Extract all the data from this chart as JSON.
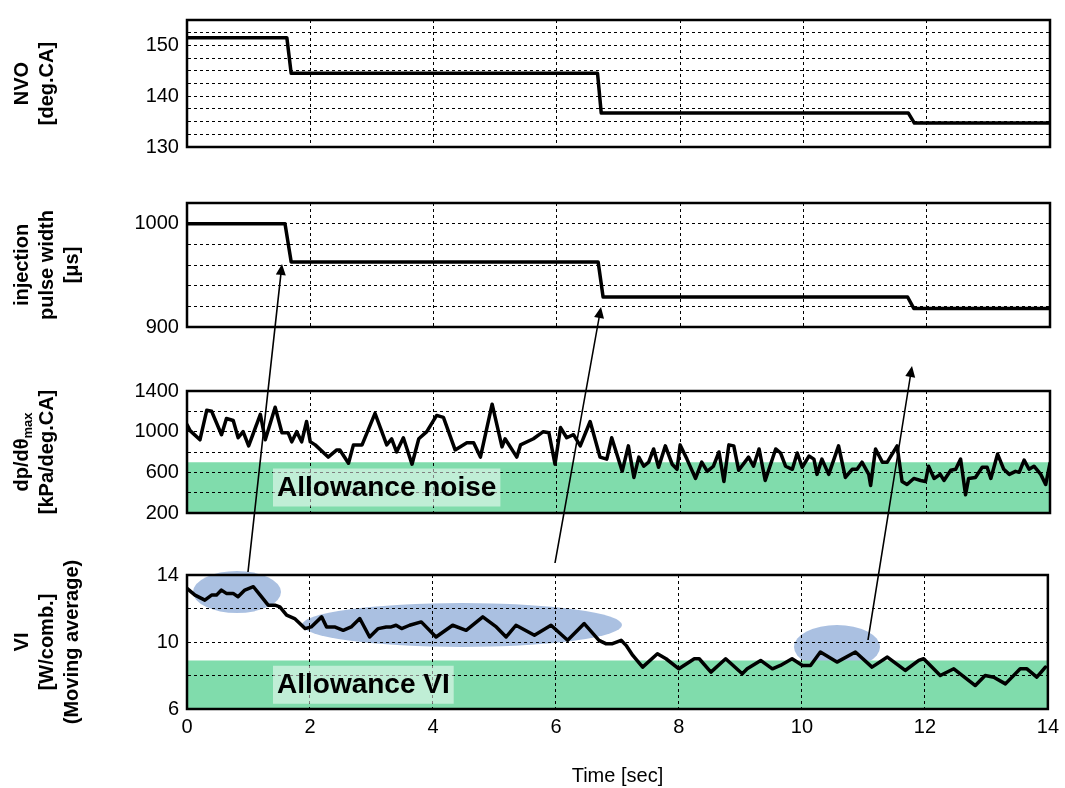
{
  "chart_data": [
    {
      "type": "line",
      "ylabel": "NVO\n[deg.CA]",
      "tick_labels": "y",
      "grid": true,
      "xlim": [
        0,
        14
      ],
      "xticks": [
        0,
        2,
        4,
        6,
        8,
        10,
        12,
        14
      ],
      "ylim": [
        130,
        155
      ],
      "yticks": [
        130,
        {
          "value": 132.5,
          "label": null
        },
        140,
        {
          "value": 142.5,
          "label": null
        },
        150,
        {
          "value": 152.5,
          "label": null
        },
        {
          "value": 135,
          "label": null
        },
        {
          "value": 137.5,
          "label": null
        },
        {
          "value": 145,
          "label": null
        },
        {
          "value": 147.5,
          "label": null
        }
      ],
      "series": [
        {
          "color": "#000000",
          "x": [
            0,
            1.62,
            1.69,
            6.66,
            6.72,
            11.7,
            11.8,
            14
          ],
          "values": [
            151.5,
            151.5,
            144.5,
            144.5,
            136.7,
            136.7,
            134.7,
            134.7
          ]
        }
      ]
    },
    {
      "type": "line",
      "ylabel": "injection\npulse width\n[μs]",
      "tick_labels": "y",
      "grid": true,
      "xlim": [
        0,
        14
      ],
      "xticks": [
        0,
        2,
        4,
        6,
        8,
        10,
        12,
        14
      ],
      "ylim": [
        900,
        1020
      ],
      "yticks": [
        900,
        {
          "value": 920,
          "label": null
        },
        {
          "value": 940,
          "label": null
        },
        {
          "value": 960,
          "label": null
        },
        {
          "value": 980,
          "label": null
        },
        1000,
        {
          "value": 1020,
          "label": null
        }
      ],
      "series": [
        {
          "color": "#000000",
          "x": [
            0,
            1.59,
            1.69,
            6.67,
            6.75,
            11.69,
            11.79,
            14
          ],
          "values": [
            1000,
            1000,
            963,
            963,
            929,
            929,
            918,
            918
          ]
        }
      ]
    },
    {
      "type": "line",
      "ylabel": "dp/dθ$_{max}$\n[kPa/deg.CA]",
      "tick_labels": "y",
      "grid": true,
      "xlim": [
        0,
        14
      ],
      "xticks": [
        0,
        2,
        4,
        6,
        8,
        10,
        12,
        14
      ],
      "ylim": [
        200,
        1400
      ],
      "yticks": [
        200,
        {
          "value": 400,
          "label": null
        },
        600,
        {
          "value": 800,
          "label": null
        },
        1000,
        {
          "value": 1200,
          "label": null
        },
        1400
      ],
      "bands": [
        {
          "axis": "y",
          "from": 200,
          "to": 700,
          "label": "Allowance noise",
          "color": "#80dcac"
        }
      ],
      "series": [
        {
          "color": "#000000",
          "x": [
            0,
            0.05,
            0.21,
            0.32,
            0.4,
            0.56,
            0.64,
            0.75,
            0.83,
            0.91,
            1.0,
            1.19,
            1.27,
            1.43,
            1.54,
            1.64,
            1.7,
            1.78,
            1.86,
            1.94,
            2.0,
            2.08,
            2.29,
            2.43,
            2.48,
            2.62,
            2.7,
            2.84,
            3.05,
            3.24,
            3.32,
            3.4,
            3.51,
            3.65,
            3.76,
            3.89,
            4.05,
            4.16,
            4.35,
            4.54,
            4.65,
            4.76,
            4.95,
            5.11,
            5.16,
            5.35,
            5.41,
            5.62,
            5.78,
            5.87,
            5.97,
            6.06,
            6.16,
            6.27,
            6.38,
            6.54,
            6.7,
            6.81,
            6.89,
            7.06,
            7.16,
            7.25,
            7.33,
            7.41,
            7.49,
            7.57,
            7.65,
            7.76,
            7.87,
            7.95,
            8.0,
            8.11,
            8.25,
            8.35,
            8.44,
            8.54,
            8.63,
            8.71,
            8.79,
            8.87,
            8.95,
            9.11,
            9.19,
            9.28,
            9.38,
            9.55,
            9.63,
            9.71,
            9.82,
            9.9,
            9.98,
            10.09,
            10.17,
            10.22,
            10.3,
            10.41,
            10.57,
            10.68,
            10.79,
            10.87,
            10.95,
            11.06,
            11.09,
            11.17,
            11.28,
            11.36,
            11.52,
            11.6,
            11.68,
            11.79,
            11.9,
            11.98,
            12.03,
            12.12,
            12.22,
            12.28,
            12.39,
            12.47,
            12.55,
            12.63,
            12.68,
            12.79,
            12.9,
            12.98,
            13.04,
            13.15,
            13.25,
            13.34,
            13.44,
            13.5,
            13.58,
            13.66,
            13.74,
            13.85,
            13.93,
            14
          ],
          "values": [
            1070,
            1010,
            920,
            1210,
            1200,
            970,
            1130,
            1110,
            940,
            1000,
            860,
            1170,
            920,
            1240,
            990,
            990,
            900,
            1000,
            900,
            1100,
            900,
            870,
            750,
            820,
            820,
            690,
            870,
            870,
            1180,
            870,
            930,
            800,
            940,
            680,
            930,
            1000,
            1160,
            1140,
            820,
            890,
            890,
            750,
            1270,
            850,
            930,
            750,
            870,
            930,
            1000,
            990,
            680,
            1040,
            940,
            970,
            860,
            1100,
            750,
            730,
            940,
            610,
            860,
            550,
            750,
            660,
            700,
            830,
            650,
            860,
            680,
            630,
            870,
            730,
            540,
            700,
            610,
            660,
            800,
            510,
            870,
            860,
            620,
            750,
            660,
            830,
            520,
            830,
            790,
            660,
            630,
            790,
            650,
            760,
            730,
            580,
            730,
            580,
            860,
            550,
            630,
            630,
            700,
            580,
            470,
            830,
            700,
            700,
            860,
            510,
            480,
            540,
            520,
            510,
            660,
            540,
            580,
            520,
            620,
            630,
            730,
            380,
            540,
            550,
            650,
            650,
            540,
            780,
            630,
            580,
            610,
            600,
            720,
            630,
            660,
            580,
            480,
            690
          ]
        }
      ]
    },
    {
      "type": "line",
      "ylabel": "VI\n[W/comb.]\n(Moving average)",
      "xlabel": "Time [sec]",
      "grid": true,
      "xlim": [
        0,
        14
      ],
      "xticks": [
        0,
        2,
        4,
        6,
        8,
        10,
        12,
        14
      ],
      "ylim": [
        6,
        14
      ],
      "yticks": [
        6,
        {
          "value": 8,
          "label": null
        },
        10,
        {
          "value": 12,
          "label": null
        },
        14
      ],
      "bands": [
        {
          "axis": "y",
          "from": 6,
          "to": 8.9,
          "label": "Allowance VI",
          "color": "#80dcac"
        }
      ],
      "series": [
        {
          "color": "#000000",
          "x": [
            0,
            0.13,
            0.29,
            0.4,
            0.48,
            0.56,
            0.64,
            0.75,
            0.83,
            0.94,
            1.08,
            1.19,
            1.32,
            1.43,
            1.51,
            1.62,
            1.75,
            1.92,
            2.02,
            2.19,
            2.27,
            2.4,
            2.54,
            2.67,
            2.81,
            2.97,
            3.11,
            3.24,
            3.32,
            3.4,
            3.49,
            3.62,
            3.81,
            4.05,
            4.32,
            4.54,
            4.81,
            5.03,
            5.19,
            5.35,
            5.65,
            5.92,
            6.19,
            6.46,
            6.7,
            6.81,
            6.92,
            7.06,
            7.14,
            7.25,
            7.41,
            7.65,
            7.79,
            8.0,
            8.25,
            8.33,
            8.52,
            8.76,
            9.03,
            9.11,
            9.33,
            9.52,
            9.65,
            9.84,
            10.01,
            10.14,
            10.3,
            10.57,
            10.87,
            11.14,
            11.39,
            11.68,
            11.9,
            11.98,
            12.25,
            12.47,
            12.82,
            12.98,
            13.12,
            13.31,
            13.55,
            13.66,
            13.82,
            13.96
          ],
          "values": [
            13.2,
            12.8,
            12.5,
            12.8,
            12.8,
            13.1,
            12.9,
            12.9,
            12.7,
            13.1,
            13.3,
            12.8,
            12.2,
            12.2,
            12.1,
            11.6,
            11.4,
            10.8,
            10.9,
            11.5,
            10.9,
            10.9,
            10.7,
            10.9,
            11.4,
            10.3,
            10.8,
            10.9,
            10.9,
            11.0,
            10.8,
            11.0,
            11.2,
            10.3,
            11.0,
            10.7,
            11.5,
            10.9,
            10.3,
            11.0,
            10.4,
            11.0,
            10.1,
            11.1,
            10.1,
            9.9,
            9.9,
            10.1,
            9.8,
            9.2,
            8.5,
            9.3,
            9.0,
            8.4,
            9.0,
            9.0,
            8.2,
            9.0,
            8.1,
            8.4,
            8.9,
            8.4,
            8.6,
            9.0,
            8.6,
            8.6,
            9.4,
            8.8,
            9.4,
            8.5,
            9.1,
            8.3,
            8.9,
            9.0,
            8.0,
            8.4,
            7.4,
            8.0,
            7.9,
            7.5,
            8.4,
            8.4,
            7.9,
            8.5
          ]
        }
      ]
    }
  ]
}
